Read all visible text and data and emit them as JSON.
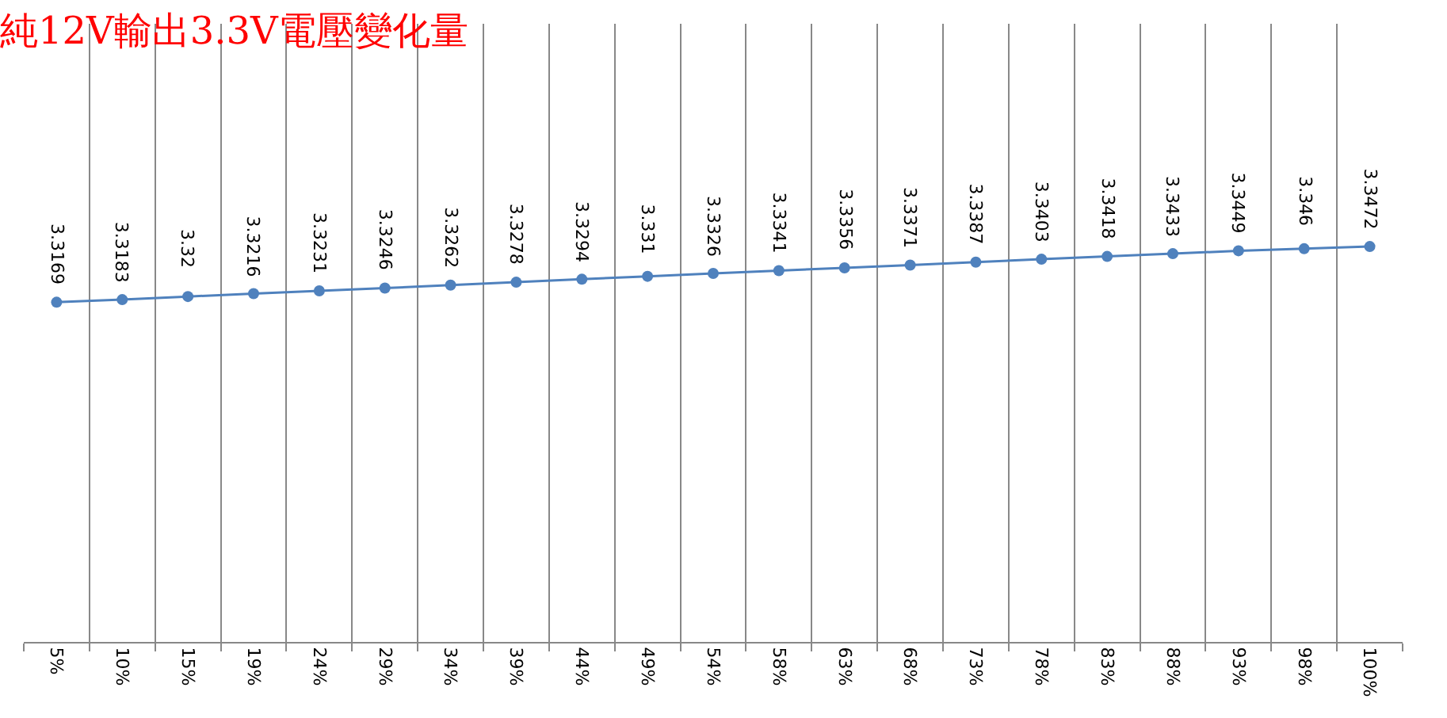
{
  "chart_data": {
    "type": "line",
    "title": "純12V輸出3.3V電壓變化量",
    "categories": [
      "5%",
      "10%",
      "15%",
      "19%",
      "24%",
      "29%",
      "34%",
      "39%",
      "44%",
      "49%",
      "54%",
      "58%",
      "63%",
      "68%",
      "73%",
      "78%",
      "83%",
      "88%",
      "93%",
      "98%",
      "100%"
    ],
    "series": [
      {
        "color": "#4f81bd",
        "values": [
          3.3169,
          3.3183,
          3.32,
          3.3216,
          3.3231,
          3.3246,
          3.3262,
          3.3278,
          3.3294,
          3.331,
          3.3326,
          3.3341,
          3.3356,
          3.3371,
          3.3387,
          3.3403,
          3.3418,
          3.3433,
          3.3449,
          3.346,
          3.3472
        ]
      }
    ],
    "data_labels": true,
    "grid": "x",
    "marker": "circle",
    "line_style": "solid",
    "legend": false,
    "tick_labels": "x"
  }
}
